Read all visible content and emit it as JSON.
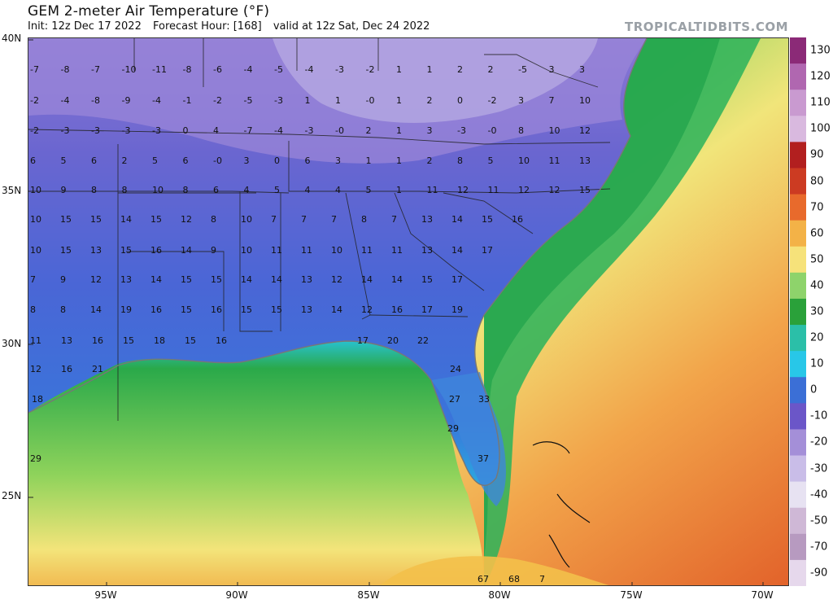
{
  "header": {
    "title": "GEM 2-meter Air Temperature (°F)",
    "init": "Init: 12z Dec 17 2022",
    "forecast_hour": "Forecast Hour: [168]",
    "valid": "valid at 12z Sat, Dec 24 2022",
    "brand": "TROPICALTIDBITS.COM"
  },
  "map": {
    "lat_labels": [
      "40N",
      "35N",
      "30N",
      "25N"
    ],
    "lon_labels": [
      "95W",
      "90W",
      "85W",
      "80W",
      "75W",
      "70W"
    ],
    "colorbar": {
      "labels": [
        "130",
        "120",
        "110",
        "100",
        "90",
        "80",
        "70",
        "60",
        "50",
        "40",
        "30",
        "20",
        "10",
        "0",
        "-10",
        "-20",
        "-30",
        "-40",
        "-50",
        "-70",
        "-90"
      ],
      "colors": [
        "#8b2a77",
        "#b067b0",
        "#c99ad0",
        "#d9b9df",
        "#b21f1f",
        "#cc3b22",
        "#e86a2c",
        "#f3b247",
        "#f6e27a",
        "#8ed36b",
        "#2aa13a",
        "#2bbfa8",
        "#28c7e8",
        "#3b6fd6",
        "#6b56c8",
        "#a48fd8",
        "#c9bde8",
        "#e7e2f2",
        "#cfb8d6",
        "#b79ac0",
        "#e6d8ec"
      ]
    },
    "temperature_labels": [
      [
        "-7",
        "-8",
        "-7",
        "-10",
        "-11",
        "-8",
        "-6",
        "-4",
        "-5",
        "-4",
        "-3",
        "-2",
        "1",
        "1",
        "2",
        "2",
        "-5",
        "3",
        "3"
      ],
      [
        "-2",
        "-4",
        "-8",
        "-9",
        "-4",
        "-1",
        "-2",
        "-5",
        "-3",
        "1",
        "1",
        "-0",
        "1",
        "2",
        "0",
        "-2",
        "3",
        "7",
        "10"
      ],
      [
        "-2",
        "-3",
        "-3",
        "-3",
        "-3",
        "0",
        "4",
        "-7",
        "-4",
        "-3",
        "-0",
        "2",
        "1",
        "3",
        "-3",
        "-0",
        "8",
        "10",
        "12"
      ],
      [
        "6",
        "5",
        "6",
        "2",
        "5",
        "6",
        "-0",
        "3",
        "0",
        "6",
        "3",
        "1",
        "1",
        "2",
        "8",
        "5",
        "10",
        "11",
        "13"
      ],
      [
        "10",
        "9",
        "8",
        "8",
        "10",
        "8",
        "6",
        "4",
        "5",
        "4",
        "4",
        "5",
        "1",
        "11",
        "12",
        "11",
        "12",
        "12",
        "15"
      ],
      [
        "10",
        "15",
        "15",
        "14",
        "15",
        "12",
        "8",
        "10",
        "7",
        "7",
        "7",
        "8",
        "7",
        "13",
        "14",
        "15",
        "16"
      ],
      [
        "10",
        "15",
        "13",
        "15",
        "16",
        "14",
        "9",
        "10",
        "11",
        "11",
        "10",
        "11",
        "11",
        "13",
        "14",
        "17"
      ],
      [
        "7",
        "9",
        "12",
        "13",
        "14",
        "15",
        "15",
        "14",
        "14",
        "13",
        "12",
        "14",
        "14",
        "15",
        "17"
      ],
      [
        "8",
        "8",
        "14",
        "19",
        "16",
        "15",
        "16",
        "15",
        "15",
        "13",
        "14",
        "12",
        "16",
        "17",
        "19"
      ],
      [
        "11",
        "13",
        "16",
        "15",
        "18",
        "15",
        "16",
        "17",
        "20",
        "22"
      ],
      [
        "12",
        "16",
        "21",
        "24"
      ],
      [
        "18",
        "27",
        "33"
      ],
      [
        "29"
      ],
      [
        "29",
        "37"
      ],
      [
        "67",
        "68",
        "7"
      ]
    ]
  }
}
